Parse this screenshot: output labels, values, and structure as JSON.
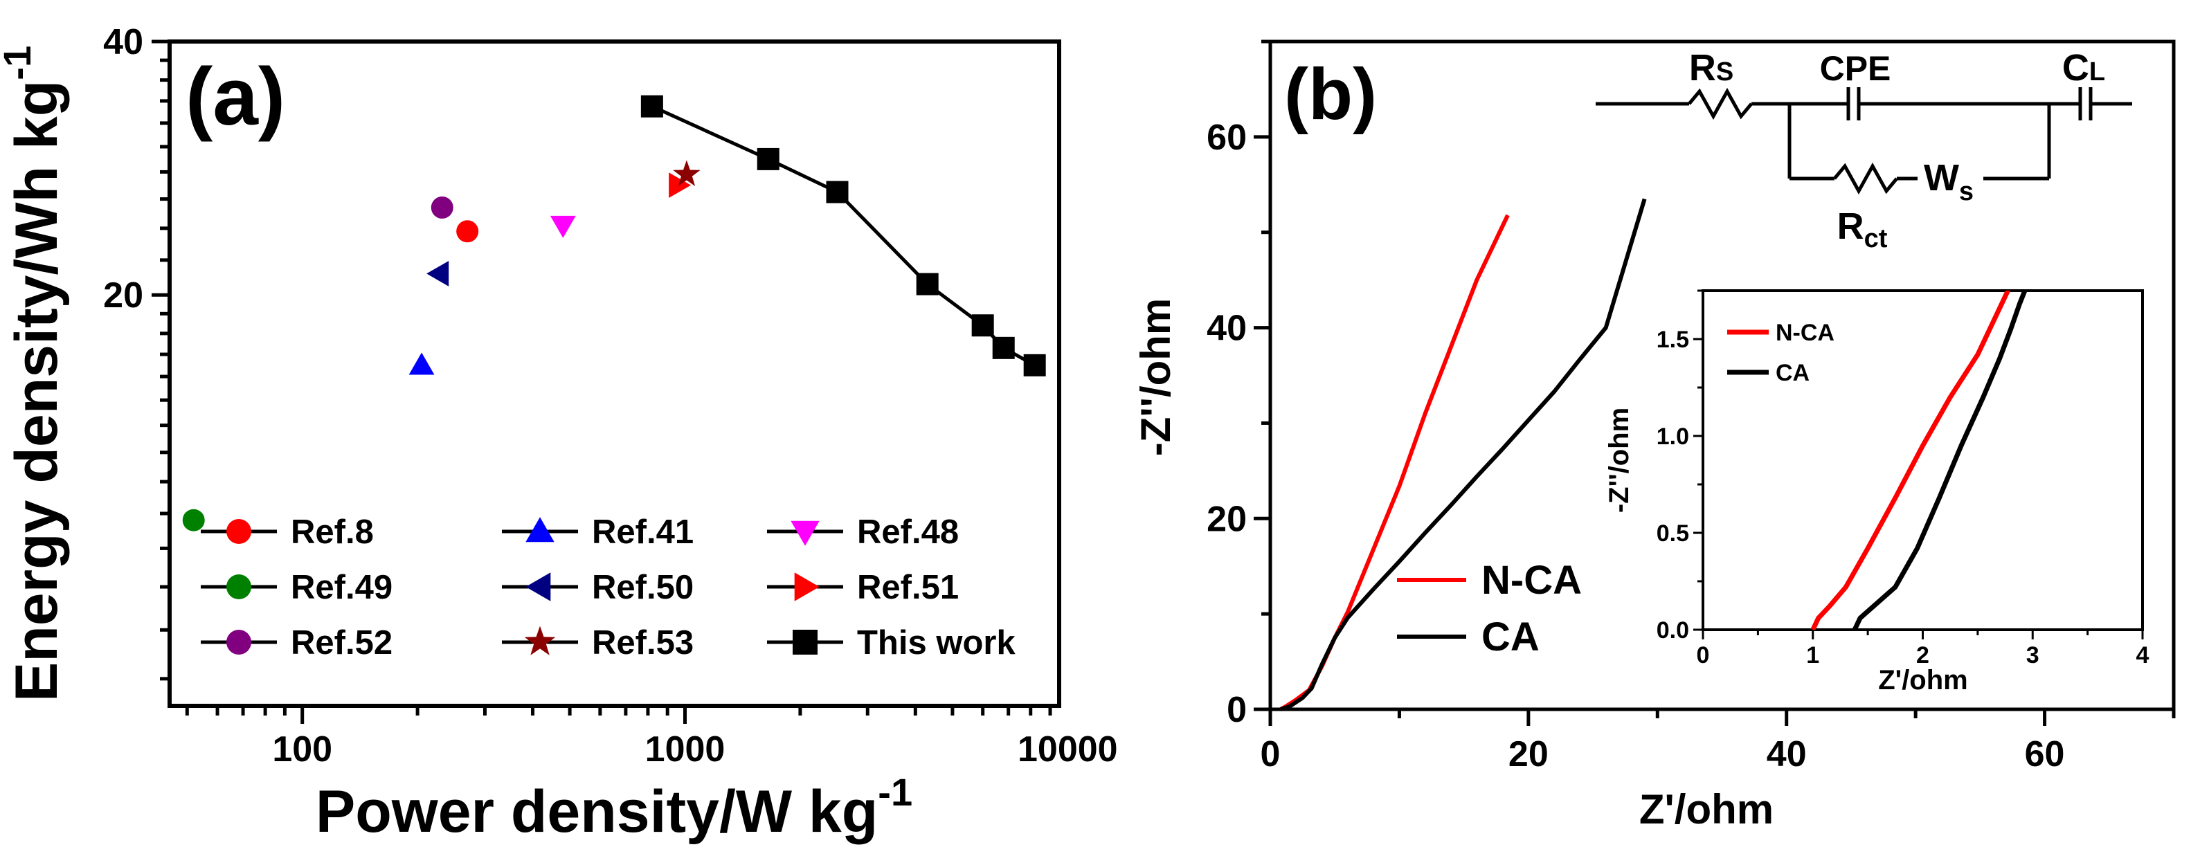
{
  "chart_data": [
    {
      "panel": "(a)",
      "type": "scatter",
      "xlabel": "Power density/W kg",
      "xlabel_sup": "-1",
      "ylabel": "Energy density/Wh kg",
      "ylabel_sup": "-1",
      "xscale": "log",
      "yscale": "log",
      "xlim": [
        45,
        9500
      ],
      "ylim": [
        6.5,
        40
      ],
      "xticks": [
        100,
        1000,
        10000
      ],
      "xtick_labels": [
        "100",
        "1000",
        "10000"
      ],
      "yticks": [
        20,
        40
      ],
      "ytick_labels": [
        "20",
        "40"
      ],
      "legend_position": "bottom",
      "series": [
        {
          "name": "Ref.8",
          "color": "#ff0000",
          "marker": "circle",
          "points": [
            [
              270,
              23.8
            ]
          ]
        },
        {
          "name": "Ref.41",
          "color": "#0000ff",
          "marker": "triangle-up",
          "points": [
            [
              205,
              16.5
            ]
          ]
        },
        {
          "name": "Ref.48",
          "color": "#ff00ff",
          "marker": "triangle-down",
          "points": [
            [
              480,
              24.2
            ]
          ]
        },
        {
          "name": "Ref.49",
          "color": "#008000",
          "marker": "circle",
          "points": [
            [
              52,
              10.8
            ]
          ]
        },
        {
          "name": "Ref.50",
          "color": "#000080",
          "marker": "triangle-left",
          "points": [
            [
              228,
              21.2
            ]
          ]
        },
        {
          "name": "Ref.51",
          "color": "#ff0000",
          "marker": "triangle-right",
          "points": [
            [
              960,
              27
            ]
          ]
        },
        {
          "name": "Ref.52",
          "color": "#800080",
          "marker": "circle",
          "points": [
            [
              232,
              25.4
            ]
          ]
        },
        {
          "name": "Ref.53",
          "color": "#8b0000",
          "marker": "star",
          "points": [
            [
              1010,
              27.8
            ]
          ]
        },
        {
          "name": "This work",
          "color": "#000000",
          "marker": "square",
          "line": true,
          "points": [
            [
              820,
              33.5
            ],
            [
              1650,
              29
            ],
            [
              2500,
              26.5
            ],
            [
              4300,
              20.6
            ],
            [
              6000,
              18.4
            ],
            [
              6800,
              17.3
            ],
            [
              8200,
              16.5
            ]
          ]
        }
      ]
    },
    {
      "panel": "(b)",
      "type": "line",
      "xlabel": "Z'/ohm",
      "ylabel": "-Z''/ohm",
      "xlim": [
        0,
        70
      ],
      "ylim": [
        0,
        70
      ],
      "xticks": [
        0,
        20,
        40,
        60
      ],
      "yticks": [
        0,
        20,
        40,
        60
      ],
      "legend_position": "bottom-left",
      "series": [
        {
          "name": "N-CA",
          "color": "#ff0000",
          "x": [
            0.8,
            1.2,
            2,
            3,
            4,
            5,
            6,
            8,
            10,
            12,
            14,
            16,
            18.4
          ],
          "y": [
            0,
            0.3,
            1,
            2,
            4.5,
            7.5,
            10.2,
            16.8,
            23.4,
            31,
            38,
            45,
            51.8
          ]
        },
        {
          "name": "CA",
          "color": "#000000",
          "x": [
            0.8,
            1.5,
            2.5,
            3.2,
            4,
            5,
            6,
            8,
            10,
            12,
            14,
            16,
            18,
            20,
            22,
            24,
            26,
            29
          ],
          "y": [
            0,
            0.3,
            1.2,
            2.2,
            4.7,
            7.5,
            9.6,
            12.6,
            15.5,
            18.5,
            21.4,
            24.4,
            27.3,
            30.3,
            33.3,
            36.7,
            40,
            53.5
          ]
        }
      ],
      "circuit_labels": {
        "rs": "R",
        "rs_sub": "S",
        "cpe": "CPE",
        "cl": "C",
        "cl_sub": "L",
        "rct": "R",
        "rct_sub": "ct",
        "ws": "W",
        "ws_sub": "s"
      },
      "inset": {
        "xlabel": "Z'/ohm",
        "ylabel": "-Z''/ohm",
        "xlim": [
          0,
          4
        ],
        "ylim": [
          0,
          1.75
        ],
        "xticks": [
          0,
          1,
          2,
          3,
          4
        ],
        "xtick_labels": [
          "0",
          "1",
          "2",
          "3",
          "4"
        ],
        "yticks": [
          0,
          0.5,
          1.0,
          1.5
        ],
        "ytick_labels": [
          "0.0",
          "0.5",
          "1.0",
          "1.5"
        ],
        "legend_position": "top-left",
        "series": [
          {
            "name": "N-CA",
            "color": "#ff0000",
            "x": [
              1.0,
              1.05,
              1.15,
              1.3,
              1.5,
              1.75,
              2.0,
              2.25,
              2.5,
              2.65,
              2.8
            ],
            "y": [
              0,
              0.06,
              0.12,
              0.22,
              0.42,
              0.68,
              0.95,
              1.2,
              1.42,
              1.6,
              1.78
            ]
          },
          {
            "name": "CA",
            "color": "#000000",
            "x": [
              1.38,
              1.43,
              1.55,
              1.75,
              1.95,
              2.15,
              2.35,
              2.55,
              2.7,
              2.8,
              2.88,
              2.95
            ],
            "y": [
              0,
              0.06,
              0.12,
              0.22,
              0.42,
              0.68,
              0.95,
              1.2,
              1.4,
              1.55,
              1.68,
              1.78
            ]
          }
        ]
      }
    }
  ]
}
